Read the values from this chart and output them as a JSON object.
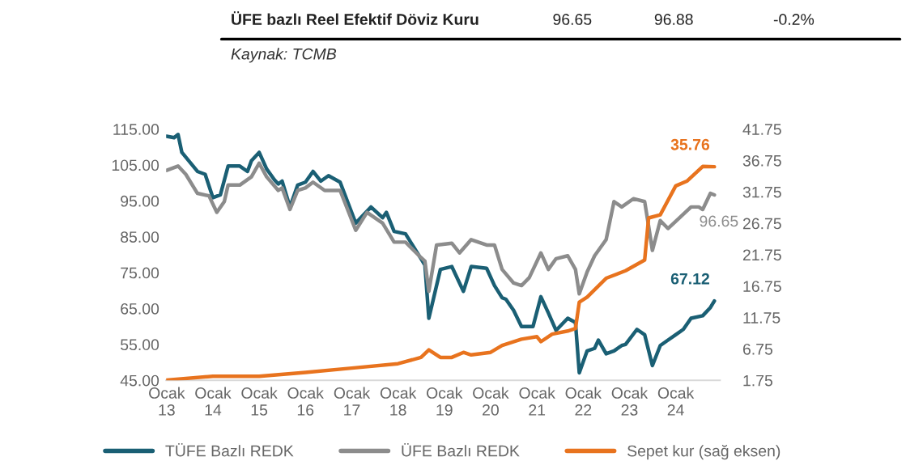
{
  "chart_data": {
    "type": "line",
    "annotations": [
      "ÜFE bazlı Reel Efektif Döviz Kuru",
      "96.65",
      "96.88",
      "-0.2%",
      "Kaynak: TCMB"
    ],
    "xlim": [
      "2012-12-28",
      "2024-12-15"
    ],
    "xticks": [
      {
        "value": "2013-01",
        "label": "Ocak\n13"
      },
      {
        "value": "2014-01",
        "label": "Ocak\n14"
      },
      {
        "value": "2015-01",
        "label": "Ocak\n15"
      },
      {
        "value": "2016-01",
        "label": "Ocak\n16"
      },
      {
        "value": "2017-01",
        "label": "Ocak\n17"
      },
      {
        "value": "2018-01",
        "label": "Ocak\n18"
      },
      {
        "value": "2019-01",
        "label": "Ocak\n19"
      },
      {
        "value": "2020-01",
        "label": "Ocak\n20"
      },
      {
        "value": "2021-01",
        "label": "Ocak\n21"
      },
      {
        "value": "2022-01",
        "label": "Ocak\n22"
      },
      {
        "value": "2023-01",
        "label": "Ocak\n23"
      },
      {
        "value": "2024-01",
        "label": "Ocak\n24"
      }
    ],
    "ylim": [
      45,
      115
    ],
    "yticks": [
      {
        "value": 45,
        "label": "45.00"
      },
      {
        "value": 55,
        "label": "55.00"
      },
      {
        "value": 65,
        "label": "65.00"
      },
      {
        "value": 75,
        "label": "75.00"
      },
      {
        "value": 85,
        "label": "85.00"
      },
      {
        "value": 95,
        "label": "95.00"
      },
      {
        "value": 105,
        "label": "105.00"
      },
      {
        "value": 115,
        "label": "115.00"
      }
    ],
    "y2lim": [
      1.75,
      41.75
    ],
    "y2ticks": [
      1.75,
      6.75,
      11.75,
      16.75,
      21.75,
      26.75,
      31.75,
      36.75,
      41.75
    ],
    "grid": false,
    "legend": "bottom",
    "marker": "none",
    "line_style": "solid",
    "series": [
      {
        "name": "TÜFE Bazlı REDK",
        "color": "#1a5f74",
        "x": [
          "2013-01",
          "2013-03",
          "2013-04",
          "2013-05",
          "2013-09",
          "2013-11",
          "2014-01",
          "2014-03",
          "2014-05",
          "2014-08",
          "2014-10",
          "2014-11",
          "2015-01",
          "2015-03",
          "2015-05",
          "2015-06",
          "2015-07",
          "2015-09",
          "2015-11",
          "2016-01",
          "2016-03",
          "2016-05",
          "2016-07",
          "2016-10",
          "2017-02",
          "2017-06",
          "2017-09",
          "2017-10",
          "2017-12",
          "2018-03",
          "2018-07",
          "2018-08",
          "2018-09",
          "2018-12",
          "2019-03",
          "2019-06",
          "2019-08",
          "2019-12",
          "2020-02",
          "2020-04",
          "2020-05",
          "2020-07",
          "2020-09",
          "2020-12",
          "2021-02",
          "2021-04",
          "2021-06",
          "2021-09",
          "2021-11",
          "2021-12",
          "2022-02",
          "2022-04",
          "2022-05",
          "2022-07",
          "2022-09",
          "2022-11",
          "2022-12",
          "2023-03",
          "2023-05",
          "2023-07",
          "2023-09",
          "2023-11",
          "2024-01",
          "2024-03",
          "2024-05",
          "2024-08",
          "2024-10",
          "2024-11"
        ],
        "values": [
          113.0,
          112.6,
          113.5,
          108.5,
          103.2,
          102.4,
          95.9,
          96.7,
          104.7,
          104.7,
          103.2,
          106.2,
          108.5,
          103.9,
          100.9,
          99.7,
          100.5,
          93.3,
          99.4,
          100.2,
          103.2,
          100.5,
          102.0,
          100.2,
          88.8,
          93.3,
          90.3,
          91.8,
          86.5,
          85.8,
          78.9,
          77.1,
          62.3,
          75.9,
          76.7,
          69.8,
          76.7,
          76.2,
          71.4,
          68.0,
          67.6,
          64.5,
          60.0,
          60.0,
          68.3,
          63.8,
          58.9,
          62.3,
          61.1,
          47.1,
          53.2,
          53.9,
          56.2,
          52.4,
          53.2,
          54.7,
          55.0,
          59.2,
          57.7,
          49.1,
          54.7,
          56.2,
          57.7,
          59.2,
          62.3,
          63.0,
          65.3,
          67.12
        ],
        "value_labels": [
          null,
          null,
          null,
          null,
          null,
          null,
          null,
          null,
          null,
          null,
          null,
          null,
          null,
          null,
          null,
          null,
          null,
          null,
          null,
          null,
          null,
          null,
          null,
          null,
          null,
          null,
          null,
          null,
          null,
          null,
          null,
          null,
          null,
          null,
          null,
          null,
          null,
          null,
          null,
          null,
          null,
          null,
          null,
          null,
          null,
          null,
          null,
          null,
          null,
          null,
          null,
          null,
          null,
          null,
          null,
          null,
          null,
          null,
          null,
          null,
          null,
          null,
          null,
          null,
          null,
          null,
          null,
          "67.12"
        ]
      },
      {
        "name": "ÜFE Bazlı REDK",
        "color": "#8c8c8c",
        "x": [
          "2013-01",
          "2013-04",
          "2013-06",
          "2013-09",
          "2013-12",
          "2014-02",
          "2014-04",
          "2014-05",
          "2014-08",
          "2014-11",
          "2015-01",
          "2015-03",
          "2015-06",
          "2015-07",
          "2015-09",
          "2015-11",
          "2016-01",
          "2016-03",
          "2016-06",
          "2016-10",
          "2017-02",
          "2017-05",
          "2017-09",
          "2017-12",
          "2018-03",
          "2018-07",
          "2018-08",
          "2018-09",
          "2018-11",
          "2019-03",
          "2019-05",
          "2019-08",
          "2019-12",
          "2020-02",
          "2020-04",
          "2020-07",
          "2020-09",
          "2020-11",
          "2021-02",
          "2021-04",
          "2021-06",
          "2021-09",
          "2021-11",
          "2021-12",
          "2022-02",
          "2022-04",
          "2022-07",
          "2022-09",
          "2022-11",
          "2023-02",
          "2023-05",
          "2023-06",
          "2023-07",
          "2023-09",
          "2023-11",
          "2024-02",
          "2024-05",
          "2024-07",
          "2024-08",
          "2024-10",
          "2024-11"
        ],
        "values": [
          103.5,
          104.7,
          102.4,
          97.1,
          96.4,
          91.8,
          94.8,
          99.4,
          99.4,
          101.7,
          105.5,
          101.7,
          97.9,
          98.6,
          92.6,
          97.9,
          98.6,
          100.2,
          97.9,
          97.9,
          86.8,
          91.8,
          88.8,
          83.5,
          83.5,
          79.2,
          78.2,
          69.8,
          82.7,
          83.2,
          80.5,
          84.2,
          82.7,
          82.7,
          75.9,
          72.1,
          71.4,
          73.6,
          80.5,
          75.9,
          78.9,
          79.7,
          75.9,
          69.1,
          75.2,
          79.7,
          84.2,
          94.8,
          93.3,
          95.6,
          94.8,
          88.0,
          81.2,
          89.5,
          87.3,
          90.3,
          93.3,
          93.3,
          92.6,
          97.1,
          96.65
        ],
        "value_labels": [
          null,
          null,
          null,
          null,
          null,
          null,
          null,
          null,
          null,
          null,
          null,
          null,
          null,
          null,
          null,
          null,
          null,
          null,
          null,
          null,
          null,
          null,
          null,
          null,
          null,
          null,
          null,
          null,
          null,
          null,
          null,
          null,
          null,
          null,
          null,
          null,
          null,
          null,
          null,
          null,
          null,
          null,
          null,
          null,
          null,
          null,
          null,
          null,
          null,
          null,
          null,
          null,
          null,
          null,
          null,
          null,
          null,
          null,
          null,
          null,
          "96.65"
        ]
      },
      {
        "name": "Sepet kur (sağ eksen)",
        "color": "#e8731e",
        "axis": "y2",
        "x": [
          "2013-01",
          "2014-01",
          "2015-01",
          "2016-01",
          "2017-01",
          "2018-01",
          "2018-07",
          "2018-09",
          "2018-12",
          "2019-03",
          "2019-06",
          "2019-08",
          "2020-01",
          "2020-04",
          "2020-09",
          "2021-01",
          "2021-02",
          "2021-05",
          "2021-09",
          "2021-11",
          "2021-12",
          "2022-02",
          "2022-07",
          "2022-12",
          "2023-05",
          "2023-06",
          "2023-09",
          "2024-01",
          "2024-04",
          "2024-08",
          "2024-11"
        ],
        "values": [
          1.8,
          2.4,
          2.4,
          3.0,
          3.7,
          4.4,
          5.4,
          6.6,
          5.4,
          5.4,
          6.2,
          5.8,
          6.2,
          7.3,
          8.3,
          8.7,
          7.9,
          9.1,
          9.6,
          10.0,
          14.2,
          15.0,
          18.0,
          19.2,
          20.9,
          27.6,
          28.1,
          32.7,
          33.5,
          35.8,
          35.76
        ],
        "value_labels": [
          null,
          null,
          null,
          null,
          null,
          null,
          null,
          null,
          null,
          null,
          null,
          null,
          null,
          null,
          null,
          null,
          null,
          null,
          null,
          null,
          null,
          null,
          null,
          null,
          null,
          null,
          null,
          null,
          null,
          null,
          "35.76"
        ]
      }
    ]
  }
}
